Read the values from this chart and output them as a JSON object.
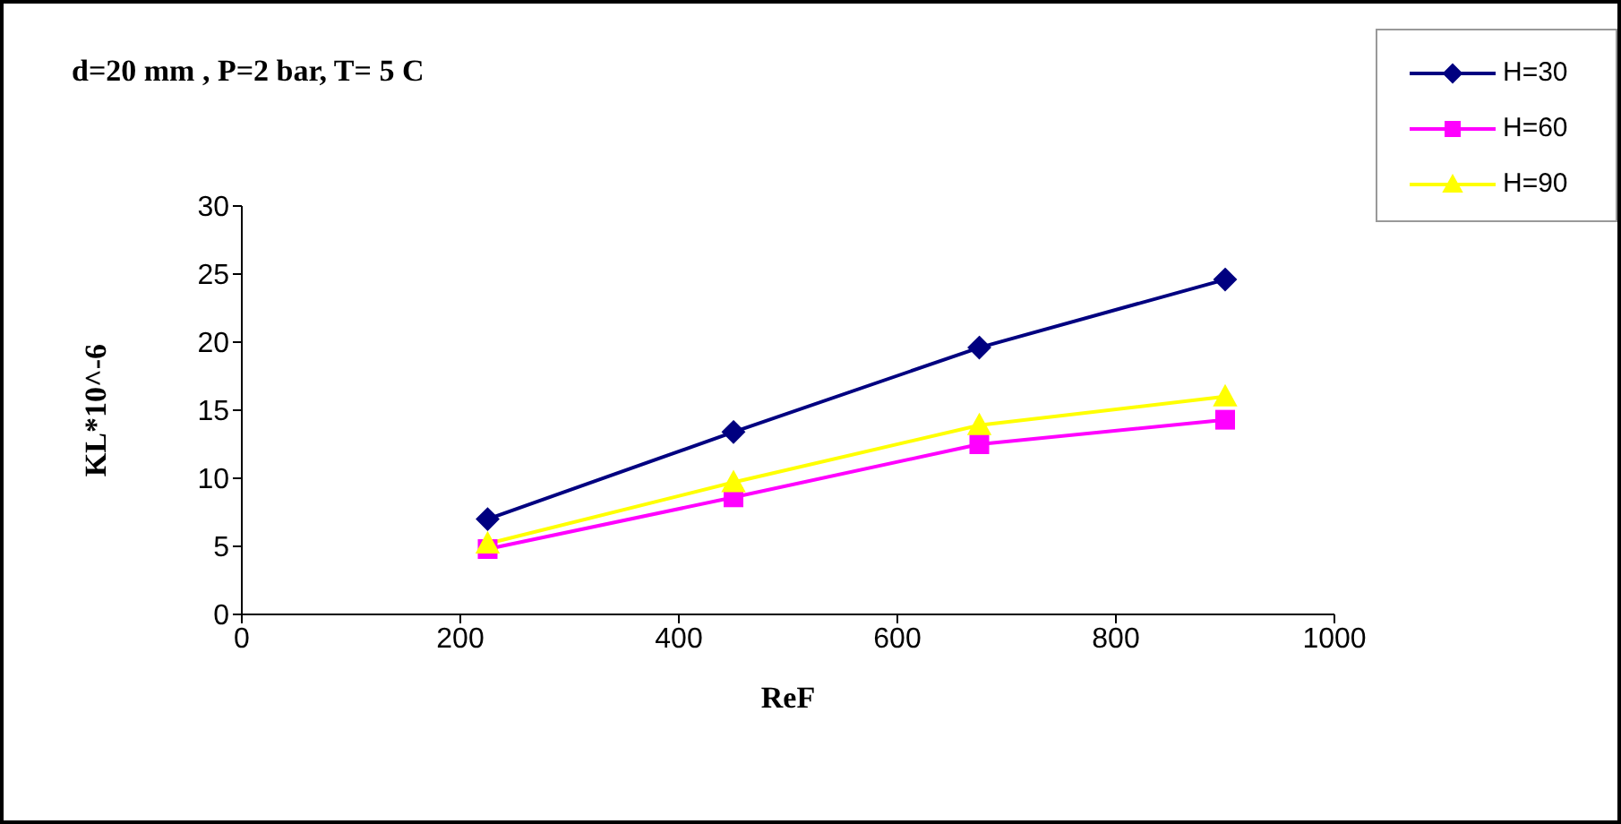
{
  "chart_data": {
    "type": "line",
    "title": "d=20 mm , P=2 bar, T= 5 C",
    "xlabel": "ReF",
    "ylabel": "KL*10^-6",
    "x": [
      225,
      450,
      675,
      900
    ],
    "series": [
      {
        "name": "H=30",
        "color": "#000080",
        "marker": "diamond",
        "values": [
          7.0,
          13.4,
          19.6,
          24.6
        ]
      },
      {
        "name": "H=60",
        "color": "#ff00ff",
        "marker": "square",
        "values": [
          4.8,
          8.6,
          12.5,
          14.3
        ]
      },
      {
        "name": "H=90",
        "color": "#ffff00",
        "marker": "triangle",
        "values": [
          5.2,
          9.7,
          13.9,
          16.0
        ]
      }
    ],
    "xlim": [
      0,
      1000
    ],
    "xticks": [
      0,
      200,
      400,
      600,
      800,
      1000
    ],
    "ylim": [
      0,
      30
    ],
    "yticks": [
      0,
      5,
      10,
      15,
      20,
      25,
      30
    ],
    "grid": false,
    "legend": "top right"
  }
}
